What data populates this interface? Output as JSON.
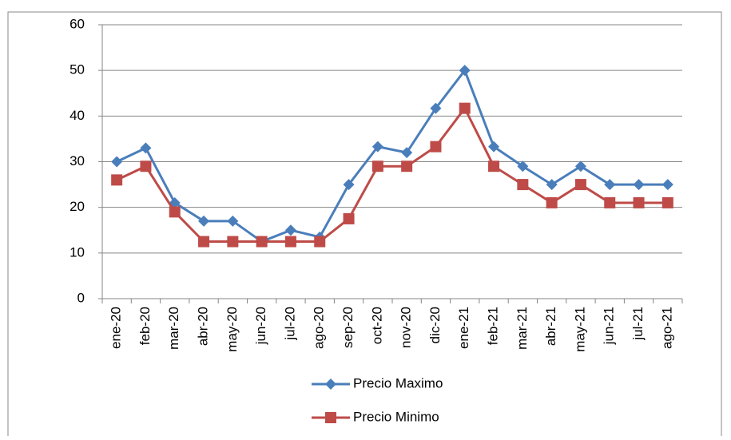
{
  "chart_data": {
    "type": "line",
    "categories": [
      "ene-20",
      "feb-20",
      "mar-20",
      "abr-20",
      "may-20",
      "jun-20",
      "jul-20",
      "ago-20",
      "sep-20",
      "oct-20",
      "nov-20",
      "dic-20",
      "ene-21",
      "feb-21",
      "mar-21",
      "abr-21",
      "may-21",
      "jun-21",
      "jul-21",
      "ago-21"
    ],
    "series": [
      {
        "name": "Precio Maximo",
        "color": "#4a7ebb",
        "marker": "diamond",
        "values": [
          30,
          33,
          21,
          17,
          17,
          12.5,
          15,
          13.5,
          25,
          33.3,
          32,
          41.7,
          50,
          33.3,
          29,
          25,
          29,
          25,
          25,
          25
        ]
      },
      {
        "name": "Precio Minimo",
        "color": "#be4b48",
        "marker": "square",
        "values": [
          26,
          29,
          19,
          12.5,
          12.5,
          12.5,
          12.5,
          12.5,
          17.5,
          29,
          29,
          33.3,
          41.7,
          29,
          25,
          21,
          25,
          21,
          21,
          21
        ]
      }
    ],
    "ylim": [
      0,
      60
    ],
    "yticks": [
      0,
      10,
      20,
      30,
      40,
      50,
      60
    ],
    "grid": true,
    "legend": "bottom"
  }
}
